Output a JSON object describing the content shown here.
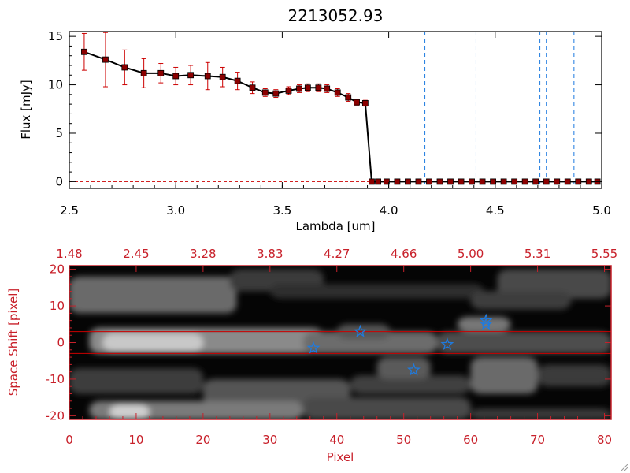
{
  "chart_data": [
    {
      "type": "line",
      "title": "2213052.93",
      "xlabel": "Lambda [um]",
      "ylabel": "Flux [mJy]",
      "xlim": [
        2.5,
        5.0
      ],
      "ylim": [
        -0.7,
        15.5
      ],
      "xticks": [
        "2.5",
        "3.0",
        "3.5",
        "4.0",
        "4.5",
        "5.0"
      ],
      "xtick_values": [
        2.5,
        3.0,
        3.5,
        4.0,
        4.5,
        5.0
      ],
      "yticks": [
        "0",
        "5",
        "10",
        "15"
      ],
      "ytick_values": [
        0,
        5,
        10,
        15
      ],
      "series": [
        {
          "color": "#000000",
          "marker_color": "#8b0000",
          "errorbar_color": "#cc0000",
          "x": [
            2.57,
            2.67,
            2.76,
            2.85,
            2.93,
            3.0,
            3.07,
            3.15,
            3.22,
            3.29,
            3.36,
            3.42,
            3.47,
            3.53,
            3.58,
            3.62,
            3.67,
            3.71,
            3.76,
            3.81,
            3.85,
            3.89,
            3.92,
            3.95,
            3.99,
            4.04,
            4.09,
            4.14,
            4.19,
            4.24,
            4.29,
            4.34,
            4.39,
            4.44,
            4.49,
            4.54,
            4.59,
            4.64,
            4.69,
            4.74,
            4.79,
            4.84,
            4.89,
            4.94,
            4.98
          ],
          "y": [
            13.4,
            12.6,
            11.8,
            11.2,
            11.2,
            10.9,
            11.0,
            10.9,
            10.8,
            10.4,
            9.7,
            9.2,
            9.1,
            9.4,
            9.6,
            9.7,
            9.7,
            9.6,
            9.2,
            8.7,
            8.2,
            8.1,
            0.0,
            0.0,
            0.0,
            0.0,
            0.0,
            0.0,
            0.0,
            0.0,
            0.0,
            0.0,
            0.0,
            0.0,
            0.0,
            0.0,
            0.0,
            0.0,
            0.0,
            0.0,
            0.0,
            0.0,
            0.0,
            0.0,
            0.0
          ],
          "err": [
            1.9,
            2.8,
            1.8,
            1.5,
            1.0,
            0.9,
            1.0,
            1.4,
            1.0,
            0.9,
            0.6,
            0.4,
            0.4,
            0.4,
            0.4,
            0.4,
            0.4,
            0.4,
            0.4,
            0.4,
            0.3,
            0.3,
            0,
            0,
            0,
            0,
            0,
            0,
            0,
            0,
            0,
            0,
            0,
            0,
            0,
            0,
            0,
            0,
            0,
            0,
            0,
            0,
            0,
            0,
            0
          ]
        }
      ],
      "vlines": [
        4.17,
        4.41,
        4.71,
        4.74,
        4.87
      ],
      "vline_color": "#1e7be0",
      "hline_y": 0,
      "hline_color": "#cc0000",
      "grid": false
    },
    {
      "type": "heatmap",
      "xlabel": "Pixel",
      "ylabel": "Space Shift [pixel]",
      "xlim": [
        0,
        81
      ],
      "ylim": [
        -21,
        21
      ],
      "xticks": [
        "0",
        "10",
        "20",
        "30",
        "40",
        "50",
        "60",
        "70",
        "80"
      ],
      "xtick_values": [
        0,
        10,
        20,
        30,
        40,
        50,
        60,
        70,
        80
      ],
      "yticks": [
        "20",
        "10",
        "0",
        "-10",
        "-20"
      ],
      "ytick_values": [
        20,
        10,
        0,
        -10,
        -20
      ],
      "top_ticks": [
        "1.48",
        "2.45",
        "3.28",
        "3.83",
        "4.27",
        "4.66",
        "5.00",
        "5.31",
        "5.55"
      ],
      "top_tick_values": [
        0,
        10,
        20,
        30,
        40,
        50,
        60,
        70,
        80
      ],
      "extraction_band": [
        -3,
        3
      ],
      "band_color": "#cc0000",
      "axis_color": "#c8202a",
      "star_color": "#1e7be0",
      "stars": [
        {
          "x": 36.5,
          "y": -1.5
        },
        {
          "x": 43.5,
          "y": 3.0
        },
        {
          "x": 51.5,
          "y": -7.5
        },
        {
          "x": 56.5,
          "y": -0.5
        },
        {
          "x": 62.3,
          "y": 6.0
        },
        {
          "x": 62.3,
          "y": 5.0
        }
      ],
      "grid": false
    }
  ]
}
